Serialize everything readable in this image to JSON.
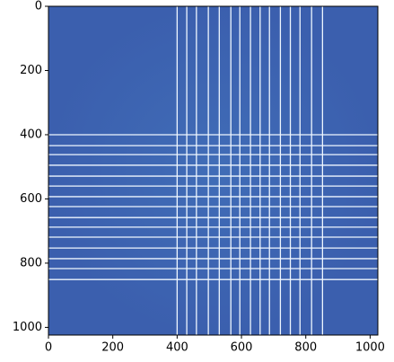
{
  "chart_data": {
    "type": "heatmap",
    "xlim": [
      0,
      1024
    ],
    "ylim": [
      1024,
      0
    ],
    "xticks": [
      0,
      200,
      400,
      600,
      800,
      1000
    ],
    "yticks": [
      0,
      200,
      400,
      600,
      800,
      1000
    ],
    "color": "#3b5fae",
    "line_color": "#eef6ff",
    "bright_columns": [
      400,
      430,
      460,
      497,
      531,
      567,
      595,
      628,
      658,
      687,
      721,
      752,
      782,
      818,
      852
    ],
    "bright_rows": [
      400,
      434,
      462,
      495,
      529,
      560,
      593,
      624,
      658,
      688,
      719,
      753,
      786,
      817,
      851
    ]
  }
}
